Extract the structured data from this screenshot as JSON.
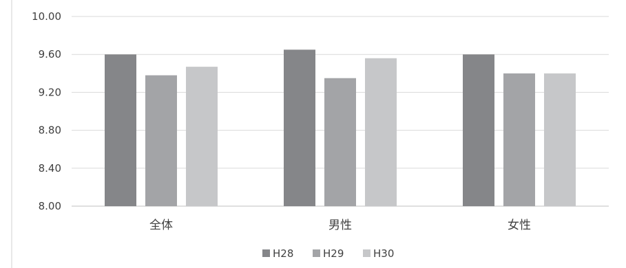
{
  "chart_data": {
    "type": "bar",
    "categories": [
      "全体",
      "男性",
      "女性"
    ],
    "series": [
      {
        "name": "H28",
        "values": [
          9.6,
          9.65,
          9.6
        ],
        "color": "#858689"
      },
      {
        "name": "H29",
        "values": [
          9.38,
          9.35,
          9.4
        ],
        "color": "#a3a4a7"
      },
      {
        "name": "H30",
        "values": [
          9.47,
          9.56,
          9.4
        ],
        "color": "#c6c7c9"
      }
    ],
    "ylim": [
      8.0,
      10.0
    ],
    "yticks": [
      "8.00",
      "8.40",
      "8.80",
      "9.20",
      "9.60",
      "10.00"
    ],
    "grid": true,
    "legend_position": "bottom",
    "title": "",
    "xlabel": "",
    "ylabel": ""
  }
}
